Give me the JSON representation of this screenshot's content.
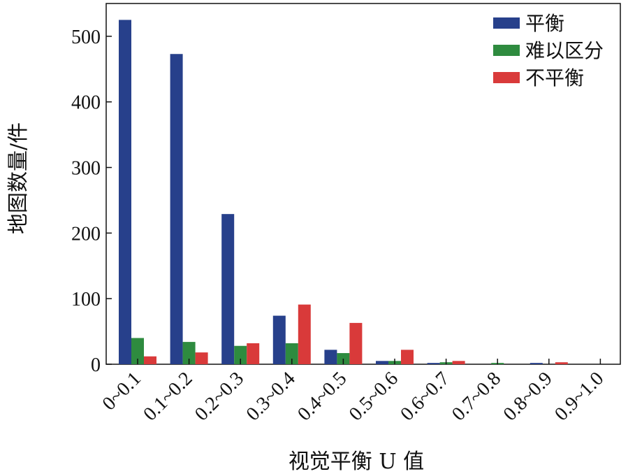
{
  "chart_data": {
    "type": "bar",
    "title": "",
    "xlabel": "视觉平衡 U 值",
    "ylabel": "地图数量/件",
    "ylim": [
      0,
      550
    ],
    "yticks": [
      0,
      100,
      200,
      300,
      400,
      500
    ],
    "categories": [
      "0~0.1",
      "0.1~0.2",
      "0.2~0.3",
      "0.3~0.4",
      "0.4~0.5",
      "0.5~0.6",
      "0.6~0.7",
      "0.7~0.8",
      "0.8~0.9",
      "0.9~1.0"
    ],
    "series": [
      {
        "name": "平衡",
        "color": "#27408b",
        "values": [
          525,
          473,
          229,
          74,
          22,
          5,
          2,
          0,
          2,
          0
        ]
      },
      {
        "name": "难以区分",
        "color": "#2e8b3f",
        "values": [
          40,
          34,
          28,
          32,
          17,
          5,
          3,
          2,
          0,
          0
        ]
      },
      {
        "name": "不平衡",
        "color": "#d93a3a",
        "values": [
          12,
          18,
          32,
          91,
          63,
          22,
          5,
          0,
          3,
          0
        ]
      }
    ],
    "legend_position": "top-right",
    "grid": false
  }
}
